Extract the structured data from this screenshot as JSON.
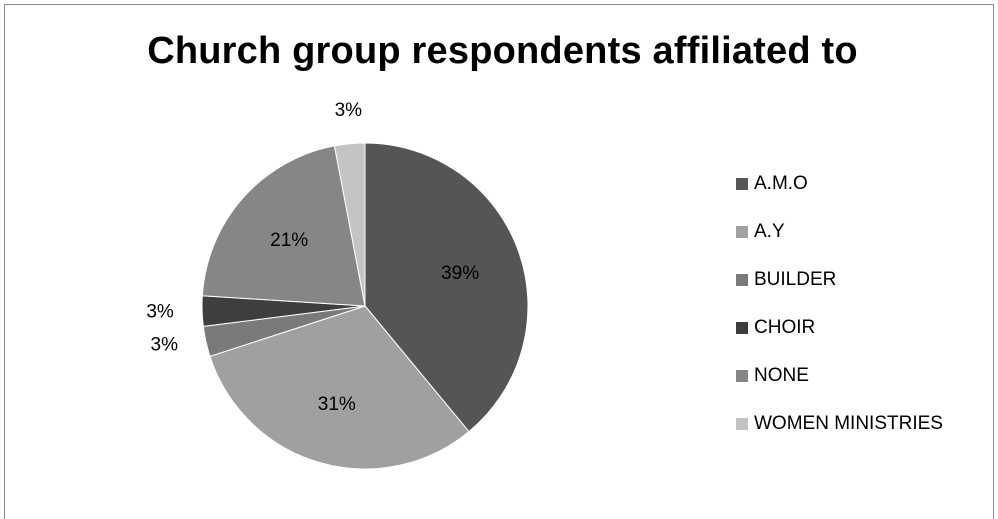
{
  "chart_data": {
    "type": "pie",
    "title": "Church group respondents affiliated to",
    "categories": [
      "A.M.O",
      "A.Y",
      "BUILDER",
      "CHOIR",
      "NONE",
      "WOMEN MINISTRIES"
    ],
    "values": [
      39,
      31,
      3,
      3,
      21,
      3
    ],
    "labels": [
      "39%",
      "31%",
      "3%",
      "3%",
      "21%",
      "3%"
    ],
    "colors": [
      "#555555",
      "#a0a0a0",
      "#7a7a7a",
      "#3e3e3e",
      "#868686",
      "#c4c4c4"
    ],
    "legend_position": "right",
    "start_angle": "12 o'clock, clockwise"
  }
}
